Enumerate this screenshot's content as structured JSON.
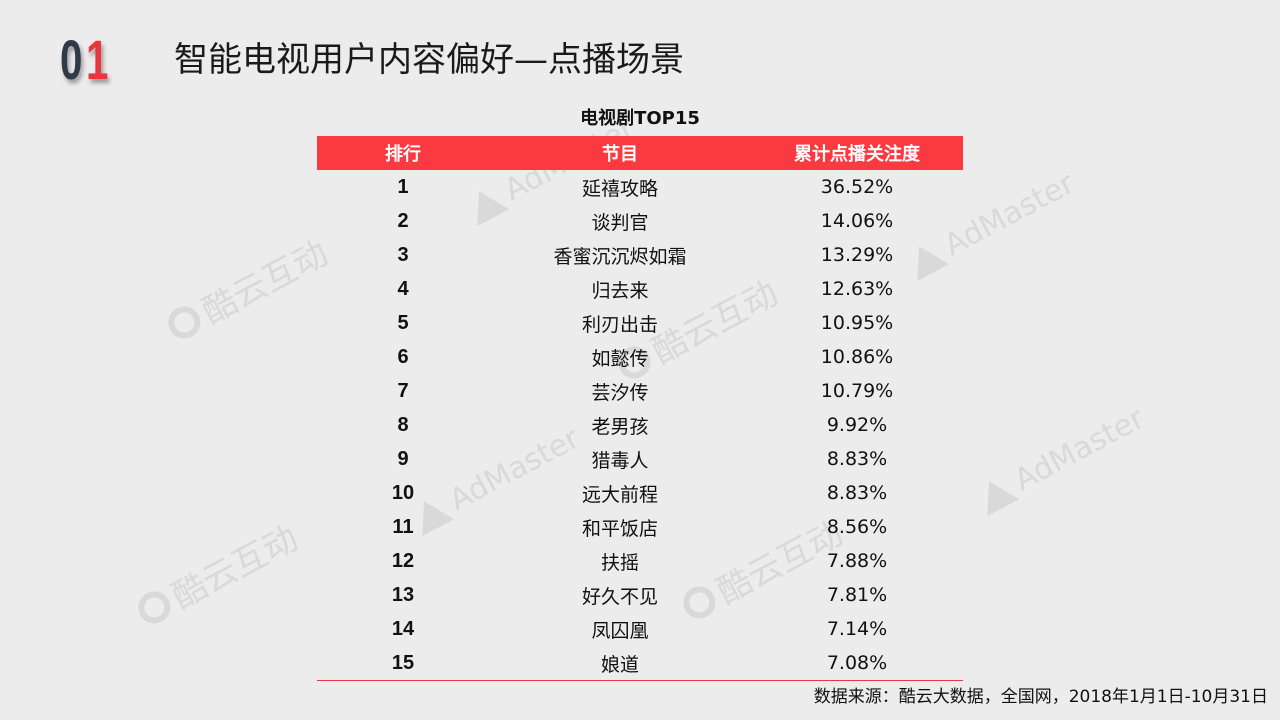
{
  "header": {
    "section_digit_1": "0",
    "section_digit_2": "1",
    "title": "智能电视用户内容偏好—点播场景"
  },
  "table": {
    "caption": "电视剧TOP15",
    "columns": [
      "排行",
      "节目",
      "累计点播关注度"
    ],
    "rows": [
      {
        "rank": "1",
        "show": "延禧攻略",
        "share": "36.52%"
      },
      {
        "rank": "2",
        "show": "谈判官",
        "share": "14.06%"
      },
      {
        "rank": "3",
        "show": "香蜜沉沉烬如霜",
        "share": "13.29%"
      },
      {
        "rank": "4",
        "show": "归去来",
        "share": "12.63%"
      },
      {
        "rank": "5",
        "show": "利刃出击",
        "share": "10.95%"
      },
      {
        "rank": "6",
        "show": "如懿传",
        "share": "10.86%"
      },
      {
        "rank": "7",
        "show": "芸汐传",
        "share": "10.79%"
      },
      {
        "rank": "8",
        "show": "老男孩",
        "share": "9.92%"
      },
      {
        "rank": "9",
        "show": "猎毒人",
        "share": "8.83%"
      },
      {
        "rank": "10",
        "show": "远大前程",
        "share": "8.83%"
      },
      {
        "rank": "11",
        "show": "和平饭店",
        "share": "8.56%"
      },
      {
        "rank": "12",
        "show": "扶摇",
        "share": "7.88%"
      },
      {
        "rank": "13",
        "show": "好久不见",
        "share": "7.81%"
      },
      {
        "rank": "14",
        "show": "凤囚凰",
        "share": "7.14%"
      },
      {
        "rank": "15",
        "show": "娘道",
        "share": "7.08%"
      }
    ]
  },
  "footer": {
    "source": "数据来源：酷云大数据，全国网，2018年1月1日-10月31日"
  },
  "watermarks": {
    "admaster": "AdMaster",
    "kuyun": "酷云互动"
  },
  "colors": {
    "accent_red": "#fa3a40",
    "digit_dark": "#2f3a47",
    "digit_red": "#e8373e",
    "background": "#ececec"
  }
}
